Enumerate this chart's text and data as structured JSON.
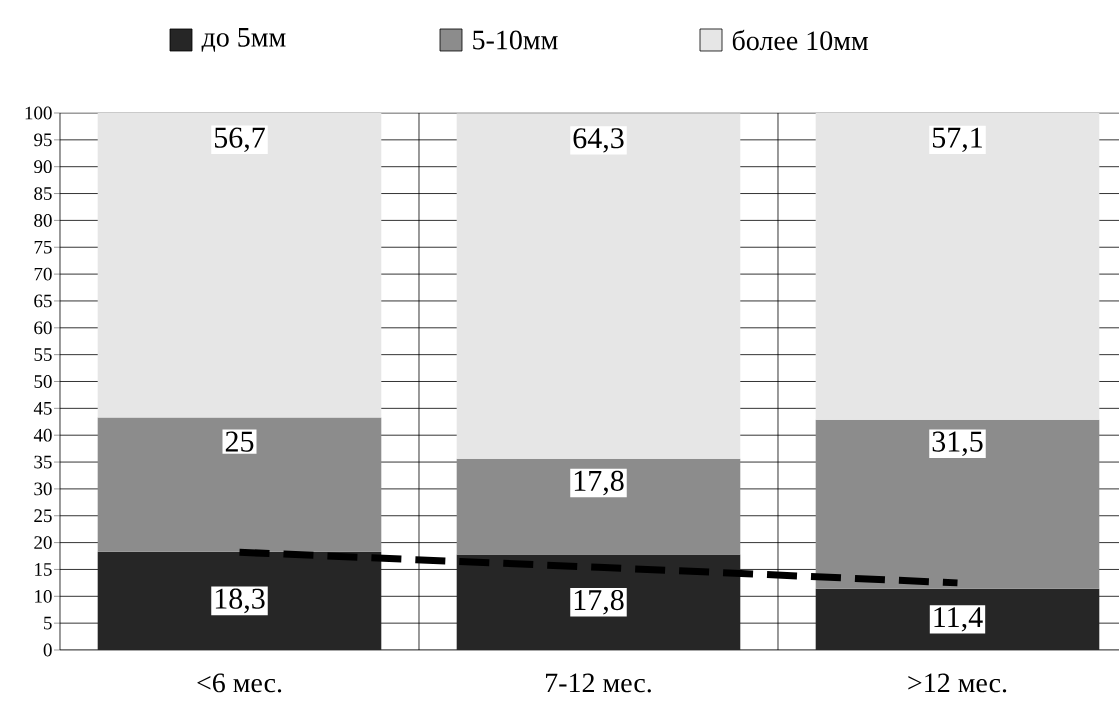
{
  "chart_data": {
    "type": "bar",
    "stacked": true,
    "categories": [
      "<6 мес.",
      "7-12 мес.",
      ">12 мес."
    ],
    "series": [
      {
        "name": "до 5мм",
        "color": "#262626",
        "values": [
          18.3,
          17.8,
          11.4
        ],
        "value_labels": [
          "18,3",
          "17,8",
          "11,4"
        ]
      },
      {
        "name": "5-10мм",
        "color": "#8c8c8c",
        "values": [
          25,
          17.8,
          31.5
        ],
        "value_labels": [
          "25",
          "17,8",
          "31,5"
        ]
      },
      {
        "name": "более 10мм",
        "color": "#e6e6e6",
        "values": [
          56.7,
          64.3,
          57.1
        ],
        "value_labels": [
          "56,7",
          "64,3",
          "57,1"
        ]
      },
      {
        "type": "line",
        "color": "#000000",
        "line_style": "dashed",
        "values": [
          18.2,
          15.4,
          12.5
        ]
      }
    ],
    "ylim": [
      0,
      100
    ],
    "yticks": [
      0,
      5,
      10,
      15,
      20,
      25,
      30,
      35,
      40,
      45,
      50,
      55,
      60,
      65,
      70,
      75,
      80,
      85,
      90,
      95,
      100
    ],
    "grid": true,
    "legend": "top"
  }
}
